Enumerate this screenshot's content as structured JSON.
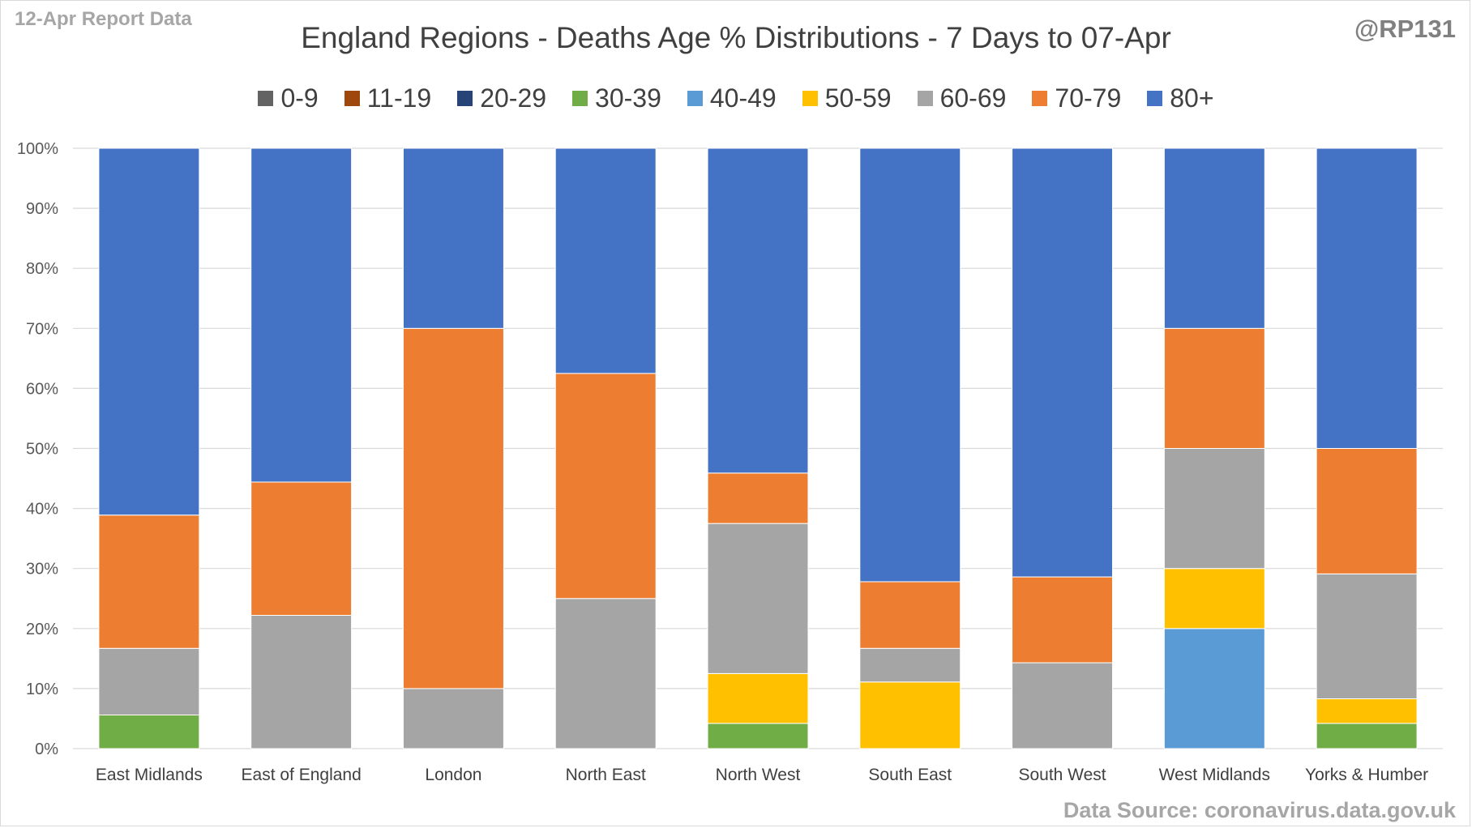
{
  "header": {
    "report_label": "12-Apr Report Data",
    "author": "@RP131",
    "source": "Data Source: coronavirus.data.gov.uk"
  },
  "chart_data": {
    "type": "bar",
    "stacked": true,
    "title": "England Regions - Deaths Age % Distributions - 7 Days to 07-Apr",
    "xlabel": "",
    "ylabel": "",
    "ylim": [
      0,
      100
    ],
    "yticks": [
      "0%",
      "10%",
      "20%",
      "30%",
      "40%",
      "50%",
      "60%",
      "70%",
      "80%",
      "90%",
      "100%"
    ],
    "grid": true,
    "legend_position": "top",
    "categories": [
      "East Midlands",
      "East of England",
      "London",
      "North East",
      "North West",
      "South East",
      "South West",
      "West Midlands",
      "Yorks & Humber"
    ],
    "series": [
      {
        "name": "0-9",
        "color": "#636363",
        "values": [
          0,
          0,
          0,
          0,
          0,
          0,
          0,
          0,
          0
        ]
      },
      {
        "name": "11-19",
        "color": "#9e480e",
        "values": [
          0,
          0,
          0,
          0,
          0,
          0,
          0,
          0,
          0
        ]
      },
      {
        "name": "20-29",
        "color": "#264478",
        "values": [
          0,
          0,
          0,
          0,
          0,
          0,
          0,
          0,
          0
        ]
      },
      {
        "name": "30-39",
        "color": "#70ad47",
        "values": [
          5.6,
          0,
          0,
          0,
          4.2,
          0,
          0,
          0,
          4.2
        ]
      },
      {
        "name": "40-49",
        "color": "#5b9bd5",
        "values": [
          0,
          0,
          0,
          0,
          0,
          0,
          0,
          20,
          0
        ]
      },
      {
        "name": "50-59",
        "color": "#ffc000",
        "values": [
          0,
          0,
          0,
          0,
          8.3,
          11.1,
          0,
          10,
          4.1
        ]
      },
      {
        "name": "60-69",
        "color": "#a5a5a5",
        "values": [
          11.1,
          22.2,
          10,
          25,
          25,
          5.6,
          14.3,
          20,
          20.8
        ]
      },
      {
        "name": "70-79",
        "color": "#ed7d31",
        "values": [
          22.2,
          22.2,
          60,
          37.5,
          8.4,
          11.1,
          14.3,
          20,
          20.9
        ]
      },
      {
        "name": "80+",
        "color": "#4472c4",
        "values": [
          61.1,
          55.6,
          30,
          37.5,
          54.1,
          72.2,
          71.4,
          30,
          50
        ]
      }
    ]
  }
}
